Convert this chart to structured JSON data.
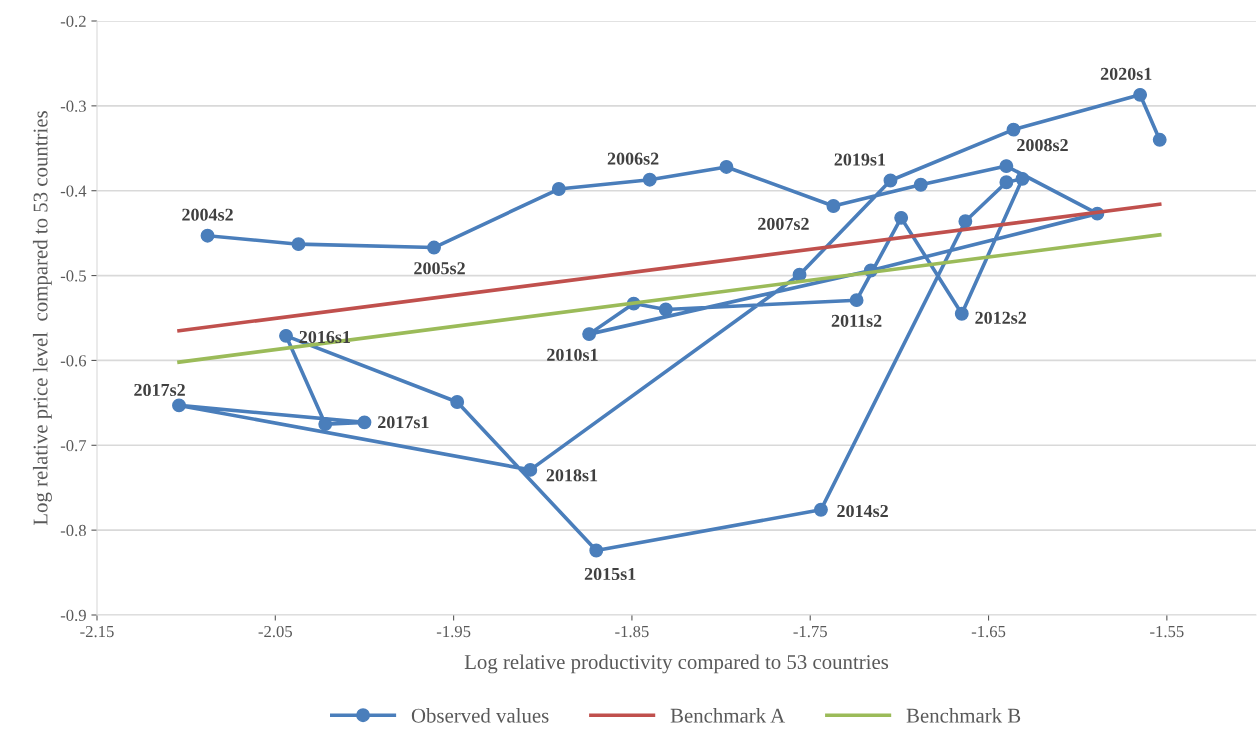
{
  "chart_data": {
    "type": "line",
    "xlabel": "Log relative productivity compared to 53 countries",
    "ylabel": "Log relative price level  compared to 53 countries",
    "xlim": [
      -2.15,
      -1.5
    ],
    "ylim": [
      -0.9,
      -0.2
    ],
    "xticks": [
      -2.15,
      -2.05,
      -1.95,
      -1.85,
      -1.75,
      -1.65,
      -1.55
    ],
    "yticks": [
      -0.9,
      -0.8,
      -0.7,
      -0.6,
      -0.5,
      -0.4,
      -0.3,
      -0.2
    ],
    "grid": "y",
    "legend": "bottom",
    "annotations": [
      {
        "text": "2004s2",
        "x": -2.088,
        "y": -0.453
      },
      {
        "text": "2005s2",
        "x": -1.961,
        "y": -0.467
      },
      {
        "text": "2006s2",
        "x": -1.84,
        "y": -0.387
      },
      {
        "text": "2007s2",
        "x": -1.737,
        "y": -0.418
      },
      {
        "text": "2008s2",
        "x": -1.64,
        "y": -0.371
      },
      {
        "text": "2010s1",
        "x": -1.874,
        "y": -0.569
      },
      {
        "text": "2011s2",
        "x": -1.724,
        "y": -0.529
      },
      {
        "text": "2012s2",
        "x": -1.665,
        "y": -0.545
      },
      {
        "text": "2014s2",
        "x": -1.744,
        "y": -0.776
      },
      {
        "text": "2015s1",
        "x": -1.87,
        "y": -0.824
      },
      {
        "text": "2016s1",
        "x": -2.044,
        "y": -0.571
      },
      {
        "text": "2017s1",
        "x": -2.0,
        "y": -0.673
      },
      {
        "text": "2017s2",
        "x": -2.104,
        "y": -0.653
      },
      {
        "text": "2018s1",
        "x": -1.907,
        "y": -0.729
      },
      {
        "text": "2019s1",
        "x": -1.705,
        "y": -0.388
      },
      {
        "text": "2020s1",
        "x": -1.565,
        "y": -0.287
      }
    ],
    "series": [
      {
        "name": "Observed values",
        "color": "#4a7ebb",
        "marker": "circle",
        "x": [
          -2.088,
          -2.037,
          -1.961,
          -1.891,
          -1.84,
          -1.797,
          -1.737,
          -1.688,
          -1.64,
          -1.589,
          -1.716,
          -1.874,
          -1.849,
          -1.831,
          -1.724,
          -1.699,
          -1.665,
          -1.631,
          -1.64,
          -1.663,
          -1.744,
          -1.87,
          -1.948,
          -2.044,
          -2.022,
          -2.0,
          -2.104,
          -1.907,
          -1.756,
          -1.705,
          -1.636,
          -1.565,
          -1.554
        ],
        "values": [
          -0.453,
          -0.463,
          -0.467,
          -0.398,
          -0.387,
          -0.372,
          -0.418,
          -0.393,
          -0.371,
          -0.427,
          -0.494,
          -0.569,
          -0.533,
          -0.54,
          -0.529,
          -0.432,
          -0.545,
          -0.386,
          -0.39,
          -0.436,
          -0.776,
          -0.824,
          -0.649,
          -0.571,
          -0.675,
          -0.673,
          -0.653,
          -0.729,
          -0.499,
          -0.388,
          -0.328,
          -0.287,
          -0.34
        ]
      },
      {
        "name": "Benchmark A",
        "color": "#c0504d",
        "marker": "none",
        "x": [
          -2.104,
          -1.554
        ],
        "values": [
          -0.565,
          -0.416
        ]
      },
      {
        "name": "Benchmark B",
        "color": "#9bbb59",
        "marker": "none",
        "x": [
          -2.104,
          -1.554
        ],
        "values": [
          -0.602,
          -0.452
        ]
      }
    ]
  }
}
